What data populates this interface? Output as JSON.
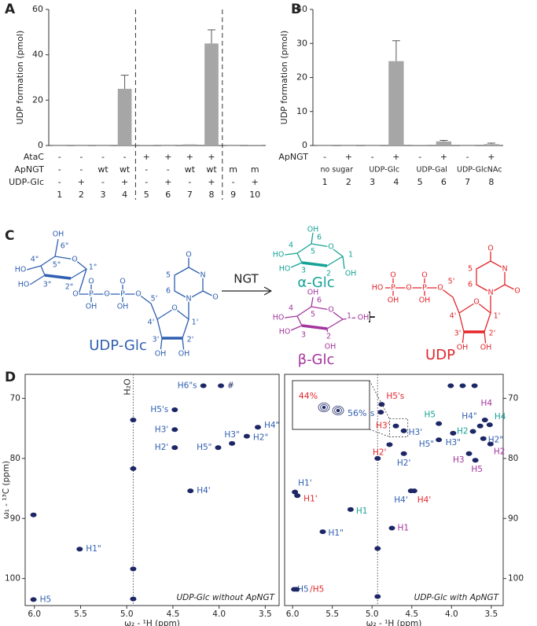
{
  "panels": [
    "A",
    "B",
    "C",
    "D"
  ],
  "chart_data": [
    {
      "type": "bar",
      "y_label": "UDP formation (pmol)",
      "color": "#a6a6a6",
      "categories": [
        "1",
        "2",
        "3",
        "4",
        "5",
        "6",
        "7",
        "8",
        "9",
        "10"
      ],
      "values": [
        0,
        0,
        0,
        25,
        0.3,
        0,
        0.5,
        45,
        0,
        0.3
      ],
      "errors": [
        null,
        null,
        null,
        6,
        null,
        null,
        null,
        6,
        null,
        null
      ],
      "ylim": [
        0,
        60
      ],
      "yticks": [
        0,
        20,
        40,
        60
      ],
      "rows": [
        {
          "label": "AtaC",
          "values": [
            "-",
            "-",
            "-",
            "-",
            "+",
            "+",
            "+",
            "+",
            null,
            null
          ]
        },
        {
          "label": "ApNGT",
          "values": [
            "-",
            "-",
            "wt",
            "wt",
            "-",
            "-",
            "wt",
            "wt",
            "m",
            "m"
          ]
        },
        {
          "label": "UDP-Glc",
          "values": [
            "-",
            "+",
            "-",
            "+",
            "-",
            "+",
            "-",
            "+",
            "-",
            "+"
          ]
        }
      ]
    },
    {
      "type": "bar",
      "y_label": "UDP formation (pmol)",
      "color": "#a6a6a6",
      "categories": [
        "1",
        "2",
        "3",
        "4",
        "5",
        "6",
        "7",
        "8"
      ],
      "values": [
        0,
        0,
        0,
        24.8,
        0.2,
        1.2,
        0,
        0.4
      ],
      "errors": [
        null,
        null,
        null,
        6,
        null,
        0.3,
        null,
        0.3
      ],
      "ylim": [
        0,
        40
      ],
      "yticks": [
        0,
        10,
        20,
        30,
        40
      ],
      "rows": [
        {
          "label": "ApNGT",
          "values": [
            "-",
            "+",
            "-",
            "+",
            "-",
            "+",
            "-",
            "+"
          ]
        }
      ],
      "groups": [
        "no sugar",
        "UDP-Glc",
        "UDP-Gal",
        "UDP-GlcNAc"
      ]
    },
    {
      "type": "scatter",
      "x_label": "ω₂ - ¹H (ppm)",
      "y_label": "ω₁ - ¹³C (ppm)",
      "caption": "UDP-Glc without ApNGT",
      "mark_color": "#1d2766",
      "xlim": [
        6.1,
        3.35
      ],
      "ylim": [
        104.5,
        66
      ],
      "xticks": [
        {
          "value": 6,
          "label": "6.0"
        },
        5.5,
        {
          "value": 5,
          "label": "5.0"
        },
        4.5,
        {
          "value": 4,
          "label": "4.0"
        },
        3.5
      ],
      "yticks": [
        70,
        80,
        90,
        100
      ],
      "water": {
        "label": "H₂O",
        "x": 4.93
      },
      "x": [
        4.17,
        3.98,
        4.48,
        4.48,
        4.48,
        3.58,
        3.86,
        4.01,
        3.7,
        4.31,
        5.51,
        6.01,
        6.01,
        4.93,
        4.93,
        4.93,
        4.93
      ],
      "y": [
        67.9,
        67.9,
        71.9,
        75.2,
        78.2,
        74.8,
        77.5,
        78.2,
        76.3,
        85.4,
        95.1,
        103.5,
        89.4,
        73.6,
        81.7,
        98.4,
        103.4
      ],
      "labels": [
        "H6\"s",
        "#",
        "H5's",
        "H3'",
        "H2'",
        "H4\"",
        "H3\"",
        "H5\"",
        "H2\"",
        "H4'",
        "H1\"",
        "H5",
        null,
        null,
        null,
        null,
        null
      ],
      "label_colors": [
        "#2f5fb0",
        "#1d2766",
        "#2f5fb0",
        "#2f5fb0",
        "#2f5fb0",
        "#2f5fb0",
        "#2f5fb0",
        "#2f5fb0",
        "#2f5fb0",
        "#2f5fb0",
        "#2f5fb0",
        "#2f5fb0",
        null,
        null,
        null,
        null,
        null
      ]
    },
    {
      "type": "scatter",
      "x_label": "ω₂ - ¹H (ppm)",
      "caption": "UDP-Glc with ApNGT",
      "mark_color": "#1d2766",
      "xlim": [
        6.1,
        3.35
      ],
      "ylim": [
        104.5,
        66
      ],
      "xticks": [
        {
          "value": 6,
          "label": "6.0"
        },
        5.5,
        {
          "value": 5,
          "label": "5.0"
        },
        4.5,
        {
          "value": 4,
          "label": "4.0"
        },
        3.5
      ],
      "yticks": [
        70,
        80,
        90,
        100
      ],
      "water": {
        "x": 4.93
      },
      "x": [
        4.01,
        3.86,
        3.71,
        4.89,
        4.88,
        4.7,
        4.6,
        4.16,
        3.64,
        3.58,
        3.52,
        3.73,
        3.6,
        3.51,
        4.16,
        3.98,
        3.78,
        3.7,
        4.78,
        4.6,
        4.51,
        4.47,
        5.97,
        5.94,
        5.27,
        5.62,
        4.75,
        5.98,
        5.95,
        4.93,
        4.93,
        4.93
      ],
      "y": [
        67.9,
        67.9,
        67.9,
        72.3,
        71.0,
        74.6,
        75.4,
        74.2,
        74.6,
        73.6,
        74.4,
        75.5,
        76.7,
        77.6,
        76.9,
        75.8,
        79.2,
        80.3,
        77.7,
        79.2,
        85.4,
        85.4,
        85.6,
        86.2,
        88.5,
        92.2,
        91.6,
        101.8,
        101.8,
        80,
        95,
        103
      ],
      "labels": [
        null,
        null,
        null,
        "H5's",
        "H5's",
        "H3'",
        "H3'",
        "H5",
        "H4\"",
        "H4",
        "H4",
        "H2",
        "H2\"",
        "H2",
        "H5\"",
        "H3\"",
        "H3",
        "H5",
        "H2'",
        "H2'",
        "H4'",
        "H4'",
        "H1'",
        "H1'",
        "H1",
        "H1\"",
        "H1",
        "H5",
        "/H5",
        null,
        null,
        null
      ],
      "label_colors": [
        null,
        null,
        null,
        "#2f5fb0",
        "#e4262b",
        "#e4262b",
        "#2f5fb0",
        "#16a396",
        "#2f5fb0",
        "#a3359e",
        "#16a396",
        "#16a396",
        "#2f5fb0",
        "#a3359e",
        "#2f5fb0",
        "#2f5fb0",
        "#a3359e",
        "#a3359e",
        "#e4262b",
        "#2f5fb0",
        "#2f5fb0",
        "#e4262b",
        "#2f5fb0",
        "#e4262b",
        "#16a396",
        "#2f5fb0",
        "#a3359e",
        "#2f5fb0",
        "#e4262b",
        null,
        null,
        null
      ],
      "inset": {
        "values": [
          44,
          56
        ],
        "value_labels": [
          "44%",
          "56%"
        ],
        "colors": [
          "#e4262b",
          "#2f5fb0"
        ]
      }
    }
  ],
  "scheme": {
    "reaction_label": "NGT",
    "plus": "+",
    "compounds": [
      {
        "name": "UDP-Glc",
        "color": "#2f5fb0",
        "atoms": [
          "OH",
          "6\"",
          "4\"",
          "5\"",
          "O",
          "1\"",
          "HO",
          "HO",
          "3\"",
          "2\"",
          "O",
          "P",
          "O",
          "P",
          "O",
          "O",
          "O",
          "OH",
          "OH",
          "5'",
          "O",
          "4'",
          "1'",
          "3'",
          "2'",
          "OH",
          "OH",
          "N",
          "N",
          "O",
          "O",
          "5",
          "6"
        ]
      },
      {
        "name": "α-Glc",
        "color": "#16a396",
        "atoms": [
          "OH",
          "6",
          "4",
          "5",
          "O",
          "1",
          "HO",
          "HO",
          "3",
          "2",
          "OH"
        ]
      },
      {
        "name": "β-Glc",
        "color": "#a3359e",
        "atoms": [
          "OH",
          "6",
          "4",
          "5",
          "O",
          "1",
          "OH",
          "HO",
          "HO",
          "3",
          "2",
          "OH"
        ]
      },
      {
        "name": "UDP",
        "color": "#e4262b",
        "atoms": [
          "O",
          "O",
          "HO",
          "P",
          "O",
          "P",
          "O",
          "5'",
          "OH",
          "OH",
          "O",
          "4'",
          "1'",
          "3'",
          "2'",
          "OH",
          "OH",
          "N",
          "N",
          "O",
          "O",
          "5",
          "6"
        ]
      }
    ]
  }
}
